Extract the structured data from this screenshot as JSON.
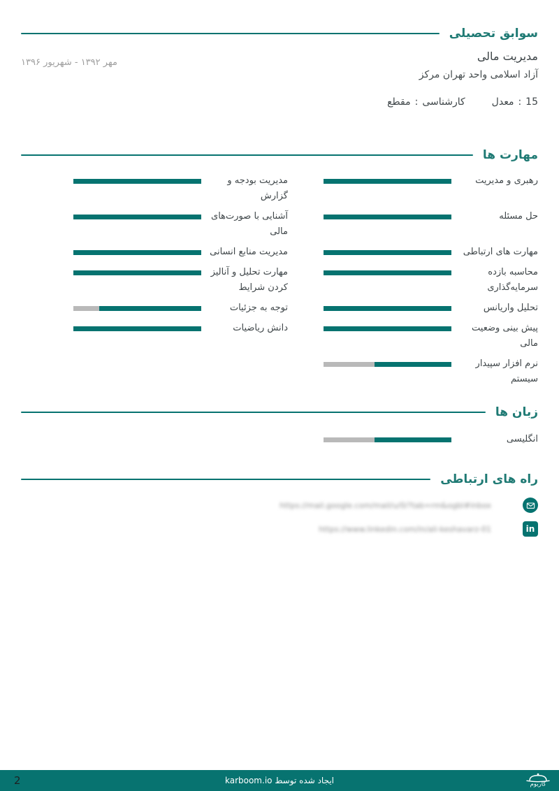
{
  "colors": {
    "accent_teal": "#067370",
    "heading_teal": "#1f7a74",
    "bar_track_gray": "#b9b9b9",
    "body_text": "#3f4649",
    "muted_gray": "#9e9e9e",
    "footer_bg": "#077370"
  },
  "education": {
    "heading": "سوابق تحصیلی",
    "date_range": "مهر ۱۳۹۲ - شهریور ۱۳۹۶",
    "field": "مدیریت مالی",
    "institution": "آزاد اسلامی واحد تهران مرکز",
    "degree": {
      "label": "مقطع",
      "sep": ":",
      "value": "کارشناسی"
    },
    "gpa": {
      "label": "معدل",
      "sep": ":",
      "value": "15"
    }
  },
  "skills": {
    "heading": "مهارت ها",
    "items": [
      {
        "label": "رهبری و مدیریت",
        "percent": 100
      },
      {
        "label": "مدیریت بودجه و گزارش",
        "percent": 100
      },
      {
        "label": "حل مسئله",
        "percent": 100
      },
      {
        "label": "آشنایی با صورت‌های مالی",
        "percent": 100
      },
      {
        "label": "مهارت های ارتباطی",
        "percent": 100
      },
      {
        "label": "مدیریت منابع انسانی",
        "percent": 100
      },
      {
        "label": "محاسبه بازده سرمایه‌گذاری",
        "percent": 100
      },
      {
        "label": "مهارت تحلیل و آنالیز کردن شرایط",
        "percent": 100
      },
      {
        "label": "تحلیل واریانس",
        "percent": 100
      },
      {
        "label": "توجه به جزئیات",
        "percent": 80
      },
      {
        "label": "پیش بینی وضعیت مالی",
        "percent": 100
      },
      {
        "label": "دانش ریاضیات",
        "percent": 100
      },
      {
        "label": "نرم افزار سپیدار سیستم",
        "percent": 60
      }
    ]
  },
  "languages": {
    "heading": "زبان ها",
    "items": [
      {
        "label": "انگلیسی",
        "percent": 60
      }
    ]
  },
  "contact": {
    "heading": "راه های ارتباطی",
    "items": [
      {
        "icon": "email-icon",
        "blurred_link": "https://mail.google.com/mail/u/0/?tab=rm&ogbl#inbox"
      },
      {
        "icon": "linkedin-icon",
        "blurred_link": "https://www.linkedin.com/in/ali-keshavarz-01"
      }
    ]
  },
  "footer": {
    "page_number": "2",
    "created_by": "ایجاد شده توسط karboom.io",
    "brand": "کاربوم",
    "linkedin_glyph": "in"
  }
}
